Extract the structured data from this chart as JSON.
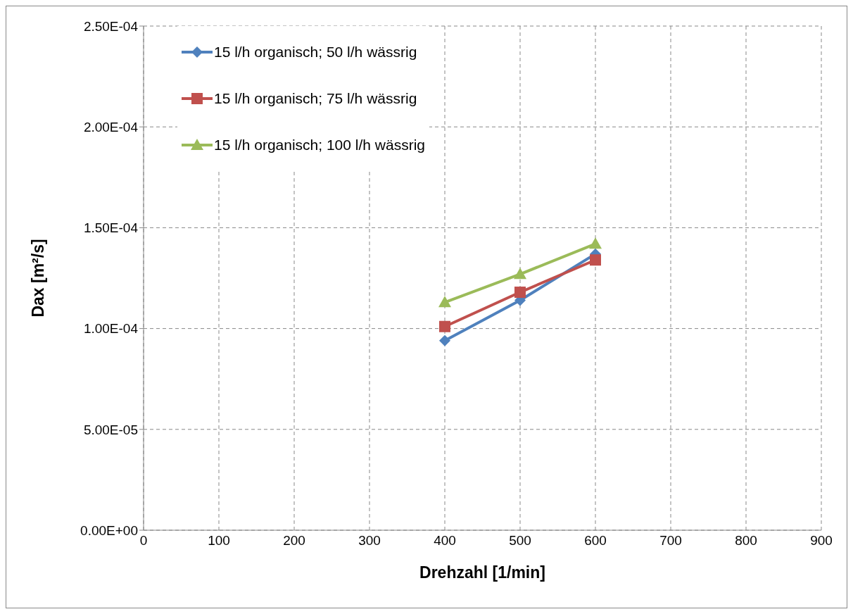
{
  "chart_data": {
    "type": "line",
    "xlabel": "Drehzahl [1/min]",
    "ylabel": "Dax [m²/s]",
    "xlim": [
      0,
      900
    ],
    "xticks": [
      0,
      100,
      200,
      300,
      400,
      500,
      600,
      700,
      800,
      900
    ],
    "ylim": [
      0,
      0.00025
    ],
    "yticks": [
      {
        "value": 0,
        "label": "0.00E+00"
      },
      {
        "value": 5e-05,
        "label": "5.00E-05"
      },
      {
        "value": 0.0001,
        "label": "1.00E-04"
      },
      {
        "value": 0.00015,
        "label": "1.50E-04"
      },
      {
        "value": 0.0002,
        "label": "2.00E-04"
      },
      {
        "value": 0.00025,
        "label": "2.50E-04"
      }
    ],
    "grid": true,
    "legend": "top left",
    "line_style": "solid",
    "x": [
      400,
      500,
      600
    ],
    "series": [
      {
        "name": "15 l/h organisch; 50 l/h wässrig",
        "color": "#4f81bd",
        "marker": "diamond",
        "values": [
          9.4e-05,
          0.000114,
          0.000137
        ]
      },
      {
        "name": "15 l/h organisch; 75 l/h wässrig",
        "color": "#c0504d",
        "marker": "square",
        "values": [
          0.000101,
          0.000118,
          0.000134
        ]
      },
      {
        "name": "15 l/h organisch; 100 l/h wässrig",
        "color": "#9bbb59",
        "marker": "triangle",
        "values": [
          0.000113,
          0.000127,
          0.000142
        ]
      }
    ]
  }
}
